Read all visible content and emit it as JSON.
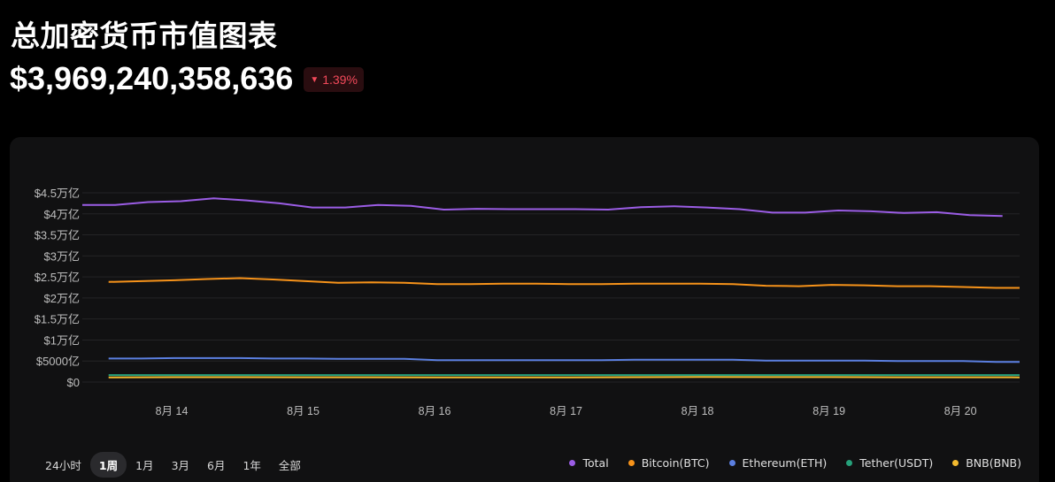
{
  "header": {
    "title": "总加密货币市值图表",
    "market_cap": "$3,969,240,358,636",
    "change_pct": "1.39%",
    "change_direction": "down",
    "change_color": "#f2495a"
  },
  "range_tabs": [
    {
      "label": "24小时",
      "active": false
    },
    {
      "label": "1周",
      "active": true
    },
    {
      "label": "1月",
      "active": false
    },
    {
      "label": "3月",
      "active": false
    },
    {
      "label": "6月",
      "active": false
    },
    {
      "label": "1年",
      "active": false
    },
    {
      "label": "全部",
      "active": false
    }
  ],
  "chart_data": {
    "type": "line",
    "title": "",
    "xlabel": "",
    "ylabel": "",
    "x_ticks": [
      "8月 14",
      "8月 15",
      "8月 16",
      "8月 17",
      "8月 18",
      "8月 19",
      "8月 20"
    ],
    "x_tick_values": [
      14,
      15,
      16,
      17,
      18,
      19,
      20
    ],
    "xlim": [
      13.32,
      20.45
    ],
    "y_ticks": [
      "$0",
      "$5000亿",
      "$1万亿",
      "$1.5万亿",
      "$2万亿",
      "$2.5万亿",
      "$3万亿",
      "$3.5万亿",
      "$4万亿",
      "$4.5万亿"
    ],
    "y_tick_values": [
      0,
      0.5,
      1,
      1.5,
      2,
      2.5,
      3,
      3.5,
      4,
      4.5
    ],
    "ylim": [
      0,
      4.5
    ],
    "y_unit": "万亿美元",
    "grid": true,
    "legend_position": "bottom-right",
    "series": [
      {
        "name": "Total",
        "color": "#9b5de5",
        "x": [
          13.32,
          13.57,
          13.82,
          14.07,
          14.32,
          14.57,
          14.82,
          15.07,
          15.32,
          15.57,
          15.82,
          16.07,
          16.32,
          16.57,
          16.82,
          17.07,
          17.32,
          17.57,
          17.82,
          18.07,
          18.32,
          18.57,
          18.82,
          19.07,
          19.32,
          19.57,
          19.82,
          20.07,
          20.32
        ],
        "values": [
          4.21,
          4.21,
          4.28,
          4.3,
          4.37,
          4.32,
          4.25,
          4.15,
          4.15,
          4.21,
          4.19,
          4.1,
          4.12,
          4.11,
          4.11,
          4.11,
          4.1,
          4.16,
          4.18,
          4.15,
          4.11,
          4.03,
          4.03,
          4.08,
          4.06,
          4.02,
          4.04,
          3.97,
          3.95
        ]
      },
      {
        "name": "Bitcoin(BTC)",
        "color": "#f7931a",
        "x": [
          13.52,
          13.77,
          14.02,
          14.27,
          14.52,
          14.77,
          15.02,
          15.27,
          15.52,
          15.77,
          16.02,
          16.27,
          16.52,
          16.77,
          17.02,
          17.27,
          17.52,
          17.77,
          18.02,
          18.27,
          18.52,
          18.77,
          19.02,
          19.27,
          19.52,
          19.77,
          20.02,
          20.27,
          20.45
        ],
        "values": [
          2.38,
          2.4,
          2.42,
          2.45,
          2.47,
          2.44,
          2.4,
          2.36,
          2.37,
          2.36,
          2.33,
          2.33,
          2.34,
          2.34,
          2.33,
          2.33,
          2.34,
          2.34,
          2.34,
          2.33,
          2.29,
          2.28,
          2.31,
          2.3,
          2.28,
          2.28,
          2.26,
          2.24,
          2.24
        ]
      },
      {
        "name": "Ethereum(ETH)",
        "color": "#5b7fe0",
        "x": [
          13.52,
          13.77,
          14.02,
          14.27,
          14.52,
          14.77,
          15.02,
          15.27,
          15.52,
          15.77,
          16.02,
          16.27,
          16.52,
          16.77,
          17.02,
          17.27,
          17.52,
          17.77,
          18.02,
          18.27,
          18.52,
          18.77,
          19.02,
          19.27,
          19.52,
          19.77,
          20.02,
          20.27,
          20.45
        ],
        "values": [
          0.56,
          0.56,
          0.57,
          0.57,
          0.57,
          0.56,
          0.56,
          0.55,
          0.55,
          0.55,
          0.52,
          0.52,
          0.52,
          0.52,
          0.52,
          0.52,
          0.53,
          0.53,
          0.53,
          0.53,
          0.51,
          0.51,
          0.51,
          0.51,
          0.5,
          0.5,
          0.5,
          0.48,
          0.48
        ]
      },
      {
        "name": "Tether(USDT)",
        "color": "#26a17b",
        "x": [
          13.52,
          14.52,
          15.52,
          16.52,
          17.52,
          18.52,
          19.52,
          20.45
        ],
        "values": [
          0.166,
          0.166,
          0.166,
          0.166,
          0.167,
          0.167,
          0.167,
          0.167
        ]
      },
      {
        "name": "BNB(BNB)",
        "color": "#f3ba2f",
        "x": [
          13.52,
          14.02,
          14.52,
          15.02,
          15.52,
          16.02,
          16.52,
          17.02,
          17.52,
          18.02,
          18.52,
          19.02,
          19.52,
          20.02,
          20.45
        ],
        "values": [
          0.11,
          0.115,
          0.115,
          0.113,
          0.113,
          0.112,
          0.112,
          0.112,
          0.115,
          0.12,
          0.117,
          0.117,
          0.114,
          0.113,
          0.112
        ]
      }
    ]
  }
}
